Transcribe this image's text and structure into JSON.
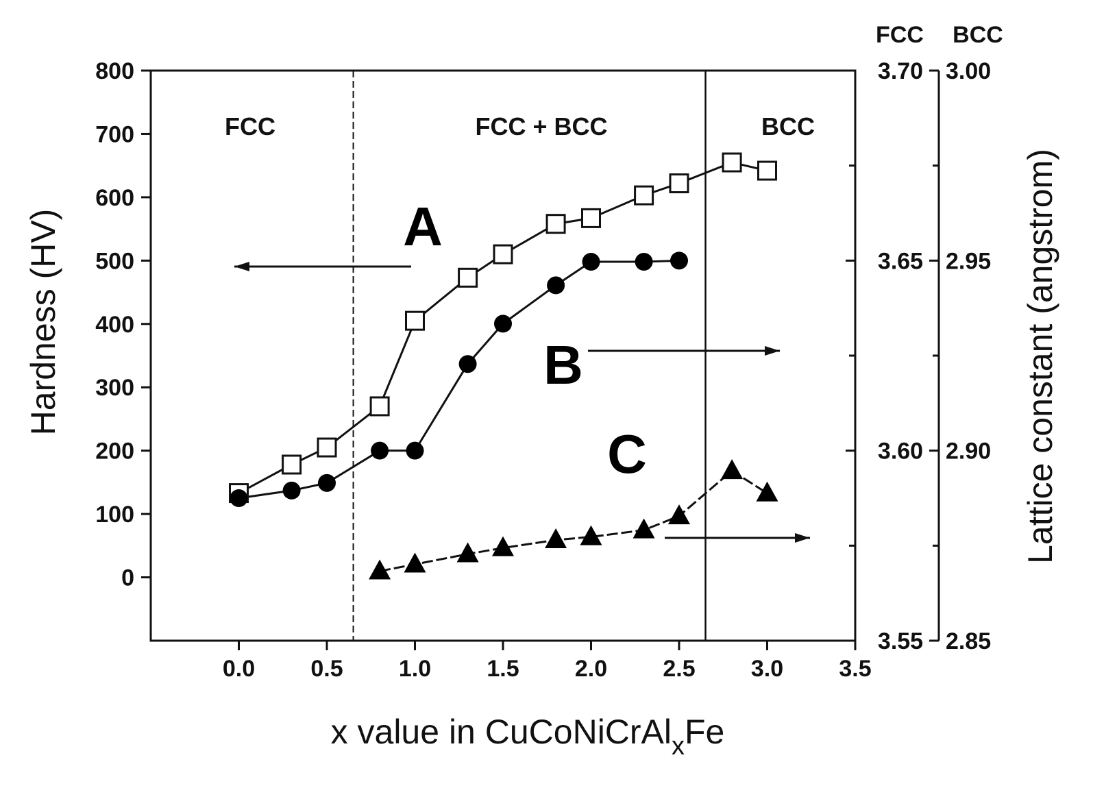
{
  "chart_data": {
    "type": "line",
    "xlabel_main": "x value in CuCoNiCrAl",
    "xlabel_sub": "x",
    "xlabel_tail": "Fe",
    "ylabel_left": "Hardness (HV)",
    "ylabel_right": "Lattice constant (angstrom)",
    "xlim": [
      -0.5,
      3.5
    ],
    "ylim_left": [
      -100,
      800
    ],
    "ylim_right_fcc": [
      3.55,
      3.7
    ],
    "ylim_right_bcc": [
      2.85,
      3.0
    ],
    "x_ticks": [
      "0.0",
      "0.5",
      "1.0",
      "1.5",
      "2.0",
      "2.5",
      "3.0",
      "3.5"
    ],
    "y_ticks_left": [
      "0",
      "100",
      "200",
      "300",
      "400",
      "500",
      "600",
      "700",
      "800"
    ],
    "right_axis_headers": [
      "FCC",
      "BCC"
    ],
    "y_ticks_right_fcc": [
      "3.55",
      "3.60",
      "3.65",
      "3.70"
    ],
    "y_ticks_right_bcc": [
      "2.85",
      "2.90",
      "2.95",
      "3.00"
    ],
    "phase_boundaries": [
      0.65,
      2.65
    ],
    "phase_labels": [
      "FCC",
      "FCC + BCC",
      "BCC"
    ],
    "series": [
      {
        "name": "A",
        "marker": "open-square",
        "axis": "left",
        "x": [
          0.0,
          0.3,
          0.5,
          0.8,
          1.0,
          1.3,
          1.5,
          1.8,
          2.0,
          2.3,
          2.5,
          2.8,
          3.0
        ],
        "y": [
          133,
          178,
          205,
          270,
          405,
          473,
          510,
          558,
          567,
          603,
          622,
          655,
          642
        ]
      },
      {
        "name": "B",
        "marker": "filled-circle",
        "axis": "right-fcc",
        "x": [
          0.0,
          0.3,
          0.5,
          0.8,
          1.0,
          1.3,
          1.5,
          1.8,
          2.0,
          2.3,
          2.5
        ],
        "y": [
          3.5875,
          3.5895,
          3.5915,
          3.6,
          3.6,
          3.6228,
          3.6334,
          3.6435,
          3.6497,
          3.6497,
          3.65
        ]
      },
      {
        "name": "C",
        "marker": "filled-triangle",
        "axis": "right-bcc",
        "x": [
          0.8,
          1.0,
          1.3,
          1.5,
          1.8,
          2.0,
          2.3,
          2.5,
          2.8,
          3.0
        ],
        "y": [
          2.8683,
          2.8701,
          2.8728,
          2.8744,
          2.8765,
          2.8773,
          2.8791,
          2.8828,
          2.8947,
          2.8888
        ]
      }
    ],
    "arrow_directions": {
      "A": "left",
      "B": "right",
      "C": "right"
    }
  }
}
